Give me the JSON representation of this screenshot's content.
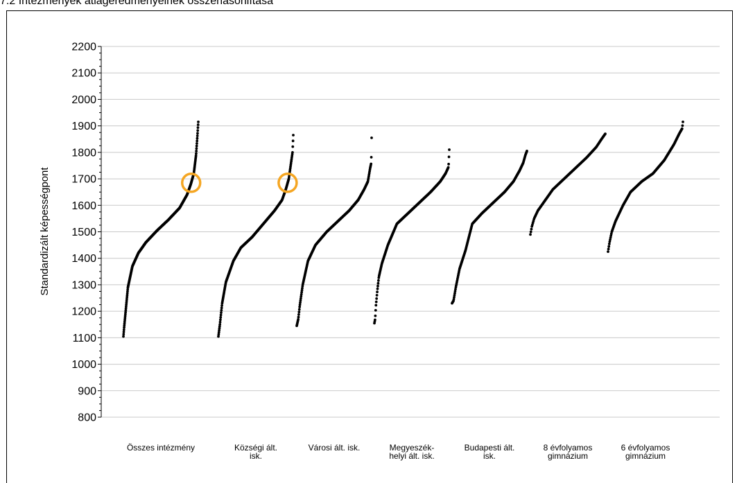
{
  "page_title": "7.2 Intézmények átlageredményeinek összehasonlítása",
  "chart_data": {
    "type": "scatter",
    "title": "",
    "xlabel": "",
    "ylabel": "Standardizált képességpont",
    "ylim": [
      800,
      2200
    ],
    "yticks": [
      800,
      900,
      1000,
      1100,
      1200,
      1300,
      1400,
      1500,
      1600,
      1700,
      1800,
      1900,
      2000,
      2100,
      2200
    ],
    "grid": "horizontal",
    "legend": "none",
    "point_color": "#000000",
    "highlight_color": "#f5a623",
    "categories": [
      [
        "Összes intézmény"
      ],
      [
        "Községi ált.",
        "isk."
      ],
      [
        "Városi ált. isk."
      ],
      [
        "Megyeszék-",
        "helyi ált. isk."
      ],
      [
        "Budapesti ált.",
        "isk."
      ],
      [
        "8 évfolyamos",
        "gimnázium"
      ],
      [
        "6 évfolyamos",
        "gimnázium"
      ]
    ],
    "series": [
      {
        "n": 420,
        "min": 1105,
        "max": 1915,
        "curve": [
          [
            0,
            1105
          ],
          [
            0.01,
            1140
          ],
          [
            0.03,
            1200
          ],
          [
            0.06,
            1290
          ],
          [
            0.12,
            1370
          ],
          [
            0.2,
            1420
          ],
          [
            0.3,
            1460
          ],
          [
            0.45,
            1505
          ],
          [
            0.6,
            1545
          ],
          [
            0.75,
            1590
          ],
          [
            0.85,
            1640
          ],
          [
            0.9,
            1680
          ],
          [
            0.94,
            1720
          ],
          [
            0.97,
            1790
          ],
          [
            0.99,
            1870
          ],
          [
            1,
            1915
          ]
        ],
        "highlight": 1685
      },
      {
        "n": 300,
        "min": 1105,
        "max": 1865,
        "curve": [
          [
            0,
            1105
          ],
          [
            0.02,
            1150
          ],
          [
            0.05,
            1230
          ],
          [
            0.1,
            1310
          ],
          [
            0.2,
            1390
          ],
          [
            0.3,
            1440
          ],
          [
            0.45,
            1480
          ],
          [
            0.6,
            1530
          ],
          [
            0.75,
            1580
          ],
          [
            0.85,
            1620
          ],
          [
            0.9,
            1660
          ],
          [
            0.94,
            1700
          ],
          [
            0.97,
            1760
          ],
          [
            0.99,
            1800
          ],
          [
            1,
            1865
          ]
        ],
        "highlight": 1685
      },
      {
        "n": 260,
        "min": 1145,
        "max": 1855,
        "curve": [
          [
            0,
            1145
          ],
          [
            0.02,
            1170
          ],
          [
            0.04,
            1220
          ],
          [
            0.08,
            1300
          ],
          [
            0.15,
            1390
          ],
          [
            0.25,
            1450
          ],
          [
            0.4,
            1500
          ],
          [
            0.55,
            1540
          ],
          [
            0.7,
            1580
          ],
          [
            0.82,
            1620
          ],
          [
            0.9,
            1660
          ],
          [
            0.95,
            1690
          ],
          [
            0.98,
            1740
          ],
          [
            0.995,
            1760
          ],
          [
            1,
            1855
          ]
        ]
      },
      {
        "n": 240,
        "min": 1155,
        "max": 1810,
        "curve": [
          [
            0,
            1155
          ],
          [
            0.01,
            1170
          ],
          [
            0.02,
            1220
          ],
          [
            0.04,
            1280
          ],
          [
            0.06,
            1330
          ],
          [
            0.1,
            1380
          ],
          [
            0.18,
            1450
          ],
          [
            0.3,
            1530
          ],
          [
            0.45,
            1570
          ],
          [
            0.6,
            1610
          ],
          [
            0.75,
            1650
          ],
          [
            0.88,
            1690
          ],
          [
            0.95,
            1720
          ],
          [
            0.99,
            1745
          ],
          [
            1,
            1810
          ]
        ]
      },
      {
        "n": 220,
        "min": 1230,
        "max": 1805,
        "curve": [
          [
            0,
            1230
          ],
          [
            0.02,
            1240
          ],
          [
            0.05,
            1290
          ],
          [
            0.1,
            1360
          ],
          [
            0.18,
            1430
          ],
          [
            0.27,
            1530
          ],
          [
            0.4,
            1570
          ],
          [
            0.55,
            1610
          ],
          [
            0.7,
            1650
          ],
          [
            0.82,
            1690
          ],
          [
            0.9,
            1730
          ],
          [
            0.95,
            1760
          ],
          [
            0.98,
            1790
          ],
          [
            1,
            1805
          ]
        ]
      },
      {
        "n": 150,
        "min": 1490,
        "max": 1870,
        "curve": [
          [
            0,
            1490
          ],
          [
            0.02,
            1520
          ],
          [
            0.05,
            1550
          ],
          [
            0.1,
            1580
          ],
          [
            0.2,
            1620
          ],
          [
            0.3,
            1660
          ],
          [
            0.45,
            1700
          ],
          [
            0.6,
            1740
          ],
          [
            0.75,
            1780
          ],
          [
            0.88,
            1820
          ],
          [
            0.95,
            1850
          ],
          [
            1,
            1870
          ]
        ]
      },
      {
        "n": 180,
        "min": 1425,
        "max": 1915,
        "curve": [
          [
            0,
            1425
          ],
          [
            0.02,
            1460
          ],
          [
            0.05,
            1500
          ],
          [
            0.1,
            1540
          ],
          [
            0.2,
            1600
          ],
          [
            0.3,
            1650
          ],
          [
            0.45,
            1690
          ],
          [
            0.6,
            1720
          ],
          [
            0.75,
            1770
          ],
          [
            0.88,
            1830
          ],
          [
            0.95,
            1870
          ],
          [
            0.99,
            1890
          ],
          [
            1,
            1915
          ]
        ]
      }
    ]
  }
}
